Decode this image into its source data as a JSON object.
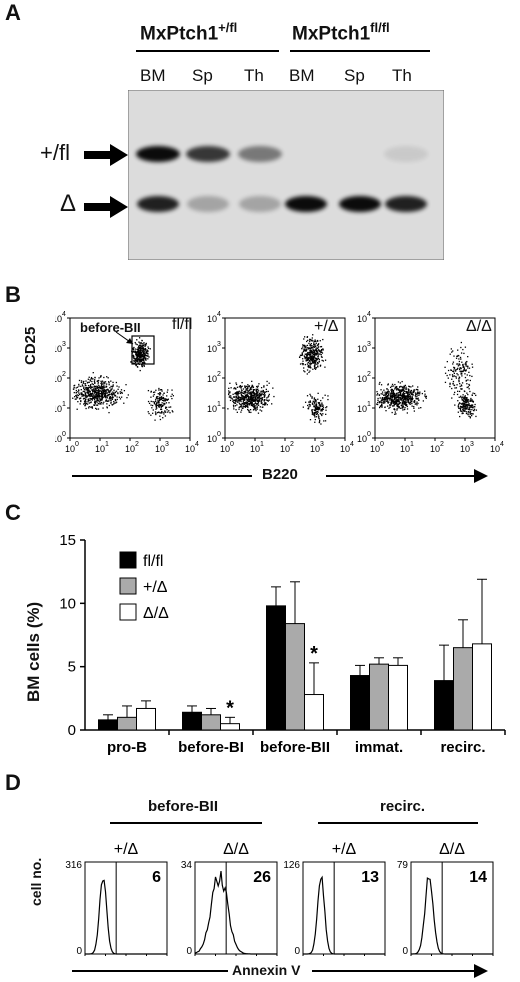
{
  "panelA": {
    "letter": "A",
    "group1_base": "MxPtch1",
    "group1_sup": "+/fl",
    "group2_base": "MxPtch1",
    "group2_sup": "fl/fl",
    "lanes": [
      "BM",
      "Sp",
      "Th",
      "BM",
      "Sp",
      "Th"
    ],
    "band_upper": "+/fl",
    "band_lower": "Δ",
    "band_upper_intensity": [
      0.95,
      0.75,
      0.45,
      0.0,
      0.0,
      0.08
    ],
    "band_lower_intensity": [
      0.85,
      0.25,
      0.25,
      0.95,
      0.95,
      0.85
    ]
  },
  "panelB": {
    "letter": "B",
    "ylabel": "CD25",
    "xlabel": "B220",
    "gate_label": "before-BII",
    "plot_labels": [
      "fl/fl",
      "+/Δ",
      "Δ/Δ"
    ],
    "tick_labels": [
      "10",
      "10",
      "10",
      "10",
      "10"
    ],
    "tick_exponents": [
      "0",
      "1",
      "2",
      "3",
      "4"
    ]
  },
  "panelC": {
    "letter": "C",
    "chart_data": {
      "type": "bar",
      "ylabel": "BM cells (%)",
      "xlabel": "",
      "ylim": [
        0,
        15
      ],
      "yticks": [
        "0",
        "5",
        "10",
        "15"
      ],
      "categories": [
        "pro-B",
        "before-BI",
        "before-BII",
        "immat.",
        "recirc."
      ],
      "series": [
        {
          "name": "fl/fl",
          "color": "#000000",
          "values": [
            0.8,
            1.4,
            9.8,
            4.3,
            3.9
          ],
          "errors": [
            0.4,
            0.5,
            1.5,
            0.8,
            2.8
          ]
        },
        {
          "name": "+/Δ",
          "color": "#aaaaaa",
          "values": [
            1.0,
            1.2,
            8.4,
            5.2,
            6.5
          ],
          "errors": [
            0.9,
            0.5,
            3.3,
            0.5,
            2.2
          ]
        },
        {
          "name": "Δ/Δ",
          "color": "#ffffff",
          "values": [
            1.7,
            0.5,
            2.8,
            5.1,
            6.8
          ],
          "errors": [
            0.6,
            0.5,
            2.5,
            0.6,
            5.1
          ]
        }
      ],
      "significance": [
        {
          "category": "before-BI",
          "series": "Δ/Δ",
          "label": "*"
        },
        {
          "category": "before-BII",
          "series": "Δ/Δ",
          "label": "*"
        }
      ]
    }
  },
  "panelD": {
    "letter": "D",
    "group1": "before-BII",
    "group2": "recirc.",
    "ylabel": "cell no.",
    "xlabel": "Annexin V",
    "histograms": [
      {
        "label": "+/Δ",
        "ymax": "316",
        "value": "6"
      },
      {
        "label": "Δ/Δ",
        "ymax": "34",
        "value": "26"
      },
      {
        "label": "+/Δ",
        "ymax": "126",
        "value": "13"
      },
      {
        "label": "Δ/Δ",
        "ymax": "79",
        "value": "14"
      }
    ],
    "tick_exponents": [
      "0",
      "1",
      "2",
      "3",
      "4"
    ]
  }
}
